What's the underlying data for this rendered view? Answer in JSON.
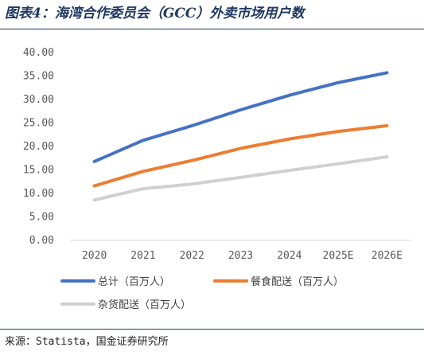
{
  "title": "图表4：海湾合作委员会（GCC）外卖市场用户数",
  "source": "来源：Statista，国金证券研究所",
  "chart_data": {
    "type": "line",
    "categories": [
      "2020",
      "2021",
      "2022",
      "2023",
      "2024",
      "2025E",
      "2026E"
    ],
    "ylim": [
      0,
      40
    ],
    "yticks": [
      "0.00",
      "5.00",
      "10.00",
      "15.00",
      "20.00",
      "25.00",
      "30.00",
      "35.00",
      "40.00"
    ],
    "grid": false,
    "legend_position": "bottom",
    "series": [
      {
        "name": "总计（百万人）",
        "color": "#4472c4",
        "values": [
          16.8,
          21.3,
          24.4,
          27.8,
          30.9,
          33.6,
          35.7
        ]
      },
      {
        "name": "餐食配送（百万人）",
        "color": "#ed7d31",
        "values": [
          11.6,
          14.7,
          17.0,
          19.6,
          21.6,
          23.2,
          24.4
        ]
      },
      {
        "name": "杂货配送（百万人）",
        "color": "#d0d0d0",
        "values": [
          8.6,
          11.0,
          12.0,
          13.4,
          14.9,
          16.3,
          17.8
        ]
      }
    ]
  }
}
